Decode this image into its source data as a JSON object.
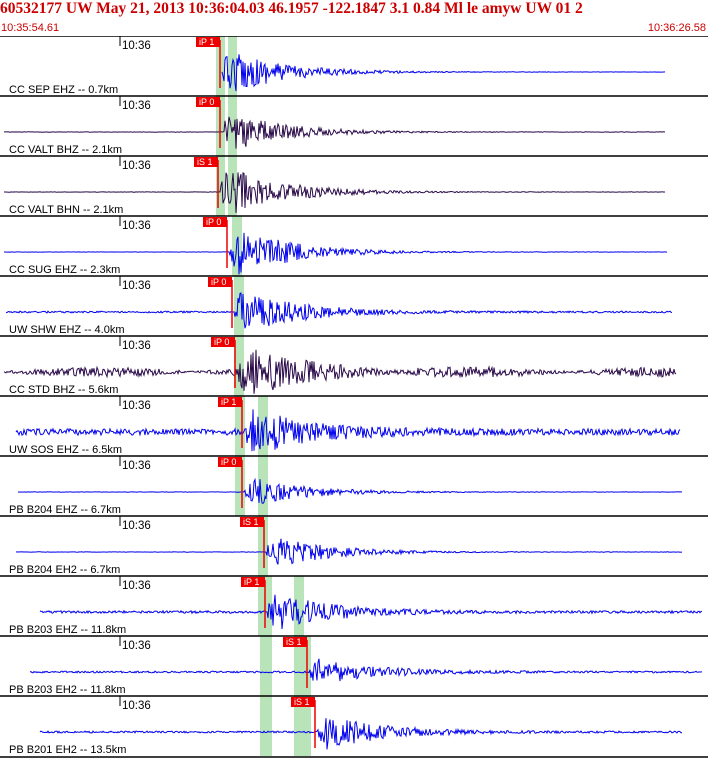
{
  "header": {
    "title": "60532177 UW May 21, 2013 10:36:04.03   46.1957 -122.1847  3.1 0.84 Ml le amyw UW 01   2",
    "start_time": "10:35:54.61",
    "end_time": "10:36:26.58"
  },
  "colors": {
    "header_text": "#cc0000",
    "pick_fill": "#ee0000",
    "window_band": "#b9e3b9",
    "trace_blue": "#0000ee",
    "trace_purple": "#2a0a4a"
  },
  "traces": [
    {
      "label": "CC SEP EHZ -- 0.7km",
      "tick": "10:36",
      "pick": "iP 1",
      "color": "blue",
      "noise": 0.04,
      "burst": 1.0
    },
    {
      "label": "CC VALT BHZ -- 2.1km",
      "tick": "10:36",
      "pick": "iP 0",
      "color": "purple",
      "noise": 0.05,
      "burst": 1.0
    },
    {
      "label": "CC VALT BHN -- 2.1km",
      "tick": "10:36",
      "pick": "iS 1",
      "color": "purple",
      "noise": 0.05,
      "burst": 1.0
    },
    {
      "label": "CC SUG EHZ -- 2.3km",
      "tick": "10:36",
      "pick": "iP 0",
      "color": "blue",
      "noise": 0.04,
      "burst": 1.0
    },
    {
      "label": "UW SHW EHZ -- 4.0km",
      "tick": "10:36",
      "pick": "iP 0",
      "color": "blue",
      "noise": 0.25,
      "burst": 1.0
    },
    {
      "label": "CC STD BHZ -- 5.6km",
      "tick": "10:36",
      "pick": "iP 0",
      "color": "purple",
      "noise": 0.25,
      "burst": 1.0
    },
    {
      "label": "UW SOS EHZ -- 6.5km",
      "tick": "10:36",
      "pick": "iP 1",
      "color": "blue",
      "noise": 0.9,
      "burst": 1.0
    },
    {
      "label": "PB B204 EHZ -- 6.7km",
      "tick": "10:36",
      "pick": "iP 0",
      "color": "blue",
      "noise": 0.05,
      "burst": 0.8
    },
    {
      "label": "PB B204 EH2 -- 6.7km",
      "tick": "10:36",
      "pick": "iS 1",
      "color": "blue",
      "noise": 0.05,
      "burst": 0.8
    },
    {
      "label": "PB B203 EHZ -- 11.8km",
      "tick": "10:36",
      "pick": "iP 1",
      "color": "blue",
      "noise": 0.35,
      "burst": 1.0
    },
    {
      "label": "PB B203 EH2 -- 11.8km",
      "tick": "10:36",
      "pick": "iS 1",
      "color": "blue",
      "noise": 0.25,
      "burst": 0.9
    },
    {
      "label": "PB B201 EH2 -- 13.5km",
      "tick": "10:36",
      "pick": "iS 1",
      "color": "blue",
      "noise": 0.25,
      "burst": 0.9
    }
  ]
}
